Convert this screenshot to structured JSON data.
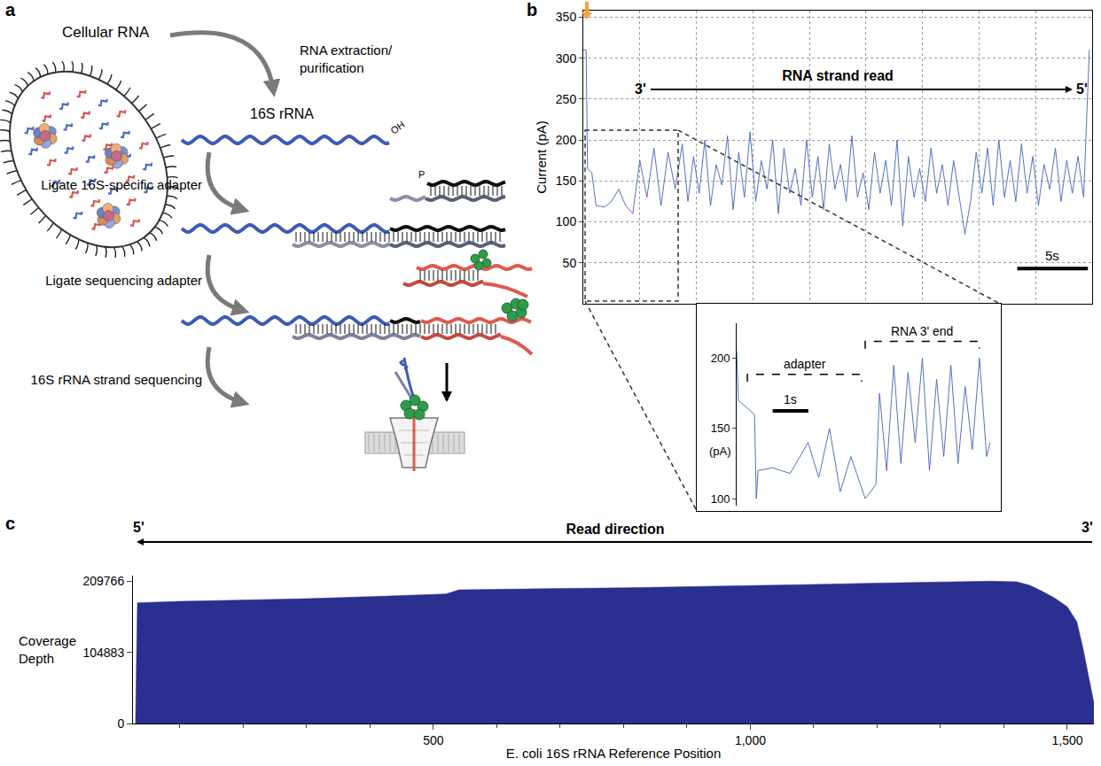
{
  "diagram": {
    "panel": "a",
    "labels": {
      "cell": "Cellular RNA",
      "extraction": [
        "RNA extraction/",
        "purification"
      ],
      "rrna": "16S rRNA",
      "oh": "OH",
      "ligate1": "Ligate 16S-specific adapter",
      "phosphate": "P",
      "ligate2": "Ligate sequencing adapter",
      "sequencing": "16S rRNA strand sequencing"
    }
  },
  "chart_data": [
    {
      "panel": "b",
      "type": "line",
      "color": "#3f63b8",
      "y_title": "Current (pA)",
      "x": [
        0,
        0.2,
        0.3,
        0.6,
        0.9,
        1.5,
        2.0,
        2.5,
        3.0,
        3.5,
        4.0,
        4.5,
        5.0,
        5.5,
        6.0,
        6.5,
        7.0,
        7.4,
        7.8,
        8.2,
        8.6,
        9.0,
        9.4,
        9.8,
        10.2,
        10.6,
        11.0,
        11.4,
        11.8,
        12.2,
        12.6,
        13.0,
        13.4,
        13.8,
        14.2,
        14.6,
        15.0,
        15.4,
        15.8,
        16.2,
        16.6,
        17.0,
        17.4,
        17.8,
        18.2,
        18.6,
        19.0,
        19.4,
        19.8,
        20.2,
        20.6,
        21.0,
        21.4,
        21.8,
        22.2,
        22.6,
        23.0,
        23.4,
        23.8,
        24.2,
        24.6,
        25.0,
        25.4,
        25.8,
        26.2,
        26.6,
        27.0,
        27.4,
        27.8,
        28.2,
        28.6,
        29.0,
        29.4,
        29.8,
        30.2,
        30.6,
        31.0,
        31.4,
        31.8,
        32.2,
        32.6,
        33.0,
        33.4,
        33.8,
        34.2,
        34.6,
        35.0,
        35.4,
        35.8
      ],
      "values": [
        310,
        310,
        165,
        160,
        120,
        118,
        125,
        140,
        120,
        110,
        175,
        130,
        190,
        120,
        185,
        140,
        195,
        125,
        180,
        135,
        200,
        120,
        170,
        145,
        205,
        115,
        185,
        130,
        210,
        125,
        175,
        140,
        200,
        110,
        190,
        135,
        165,
        120,
        200,
        130,
        180,
        115,
        195,
        140,
        170,
        125,
        205,
        130,
        160,
        115,
        185,
        135,
        175,
        120,
        200,
        95,
        180,
        130,
        165,
        125,
        190,
        135,
        170,
        120,
        175,
        130,
        85,
        125,
        185,
        135,
        190,
        120,
        200,
        130,
        175,
        125,
        195,
        135,
        180,
        120,
        170,
        140,
        190,
        125,
        175,
        135,
        180,
        130,
        310
      ],
      "xlim": [
        0,
        36
      ],
      "ylim": [
        0,
        358
      ],
      "xticks": [
        0,
        4,
        8,
        12,
        16,
        20,
        24,
        28,
        32,
        36
      ],
      "yticks": [
        50,
        100,
        150,
        200,
        250,
        300,
        350
      ],
      "grid": true,
      "tick_labels": "y",
      "scale_bar": {
        "value": 5,
        "label": "5s"
      },
      "annotations": {
        "start": "3'",
        "end": "5'",
        "text": "RNA strand read"
      }
    },
    {
      "type": "line",
      "color": "#3f63b8",
      "y_title": "(pA)",
      "x": [
        0,
        0.05,
        0.5,
        0.55,
        0.6,
        1.0,
        1.5,
        2.0,
        2.3,
        2.6,
        2.9,
        3.2,
        3.6,
        3.9,
        4.0,
        4.2,
        4.4,
        4.6,
        4.8,
        5.0,
        5.2,
        5.4,
        5.6,
        5.8,
        6.0,
        6.2,
        6.4,
        6.6,
        6.8,
        7.0,
        7.1
      ],
      "values": [
        205,
        170,
        160,
        100,
        120,
        122,
        118,
        140,
        115,
        150,
        105,
        130,
        100,
        110,
        175,
        120,
        195,
        125,
        190,
        140,
        200,
        120,
        185,
        130,
        195,
        125,
        180,
        135,
        200,
        130,
        140
      ],
      "xlim": [
        0,
        7.2
      ],
      "ylim": [
        95,
        225
      ],
      "yticks": [
        100,
        150,
        200
      ],
      "grid": false,
      "tick_labels": "y",
      "scale_bar": {
        "value": 1,
        "label": "1s"
      },
      "regions": [
        {
          "label": "adapter",
          "start": 0.3,
          "end": 3.5
        },
        {
          "label": "RNA 3' end",
          "start": 3.6,
          "end": 6.8
        }
      ]
    },
    {
      "panel": "c",
      "type": "area",
      "color": "#2b2f8f",
      "x_title": "E. coli 16S rRNA Reference Position",
      "y_title": "Coverage Depth",
      "x": [
        30,
        33,
        100,
        200,
        300,
        400,
        500,
        520,
        540,
        600,
        700,
        800,
        900,
        1000,
        1100,
        1200,
        1300,
        1380,
        1420,
        1440,
        1460,
        1480,
        1500,
        1515,
        1525,
        1532,
        1540,
        1542
      ],
      "values": [
        0,
        178000,
        180000,
        182000,
        184000,
        187000,
        190000,
        191000,
        197000,
        198000,
        199000,
        200000,
        201500,
        203000,
        205000,
        207000,
        208500,
        209766,
        209000,
        204000,
        195000,
        185000,
        172000,
        150000,
        110000,
        75000,
        40000,
        30000
      ],
      "xlim": [
        26,
        1542
      ],
      "ylim": [
        0,
        218000
      ],
      "xticks": [
        500,
        {
          "value": 1000,
          "label": "1,000"
        },
        {
          "value": 1500,
          "label": "1,500"
        }
      ],
      "xminorticks": [
        100,
        200,
        300,
        400,
        600,
        700,
        800,
        900,
        1100,
        1200,
        1300,
        1400
      ],
      "yticks": [
        0,
        104883,
        209766
      ],
      "grid": false,
      "annotations": {
        "start": "5'",
        "end": "3'",
        "text": "Read direction"
      }
    }
  ]
}
